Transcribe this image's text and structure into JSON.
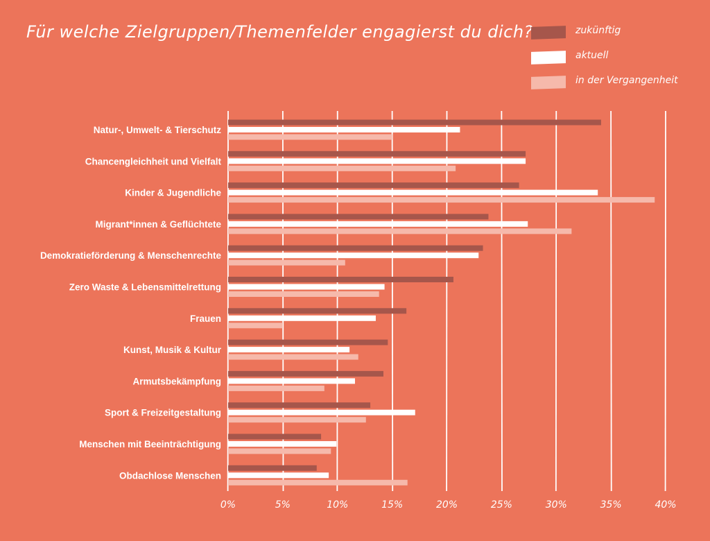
{
  "title": "Für welche Zielgruppen/Themenfelder engagierst du dich?",
  "colors": {
    "background": "#EC745A",
    "zukuenftig": "#A6564B",
    "aktuell": "#FFFFFF",
    "vergangenheit": "#F6B9AB",
    "grid": "#FFFFFF"
  },
  "legend": [
    {
      "name": "zukünftig",
      "color": "#A6564B"
    },
    {
      "name": "aktuell",
      "color": "#FFFFFF"
    },
    {
      "name": "in der Vergangenheit",
      "color": "#F6B9AB"
    }
  ],
  "chart_data": {
    "type": "bar",
    "orientation": "horizontal",
    "title": "Für welche Zielgruppen/Themenfelder engagierst du dich?",
    "categories": [
      "Natur-, Umwelt- & Tierschutz",
      "Chancengleichheit und Vielfalt",
      "Kinder & Jugendliche",
      "Migrant*innen & Geflüchtete",
      "Demokratieförderung & Menschenrechte",
      "Zero Waste & Lebensmittelrettung",
      "Frauen",
      "Kunst, Musik & Kultur",
      "Armutsbekämpfung",
      "Sport & Freizeitgestaltung",
      "Menschen mit Beeinträchtigung",
      "Obdachlose Menschen"
    ],
    "series": [
      {
        "name": "zukünftig",
        "values": [
          34.1,
          27.2,
          26.6,
          23.8,
          23.3,
          20.6,
          16.3,
          14.6,
          14.2,
          13.0,
          8.5,
          8.1
        ]
      },
      {
        "name": "aktuell",
        "values": [
          21.2,
          27.2,
          33.8,
          27.4,
          22.9,
          14.3,
          13.5,
          11.1,
          11.6,
          17.1,
          9.9,
          9.2
        ]
      },
      {
        "name": "in der Vergangenheit",
        "values": [
          15.0,
          20.8,
          39.0,
          31.4,
          10.7,
          13.8,
          5.0,
          11.9,
          8.8,
          12.6,
          9.4,
          16.4
        ]
      }
    ],
    "xlim": [
      0,
      40
    ],
    "xticks": [
      0,
      5,
      10,
      15,
      20,
      25,
      30,
      35,
      40
    ],
    "xtick_labels": [
      "0%",
      "5%",
      "10%",
      "15%",
      "20%",
      "25%",
      "30%",
      "35%",
      "40%"
    ],
    "grid": true,
    "legend_position": "top-right"
  }
}
